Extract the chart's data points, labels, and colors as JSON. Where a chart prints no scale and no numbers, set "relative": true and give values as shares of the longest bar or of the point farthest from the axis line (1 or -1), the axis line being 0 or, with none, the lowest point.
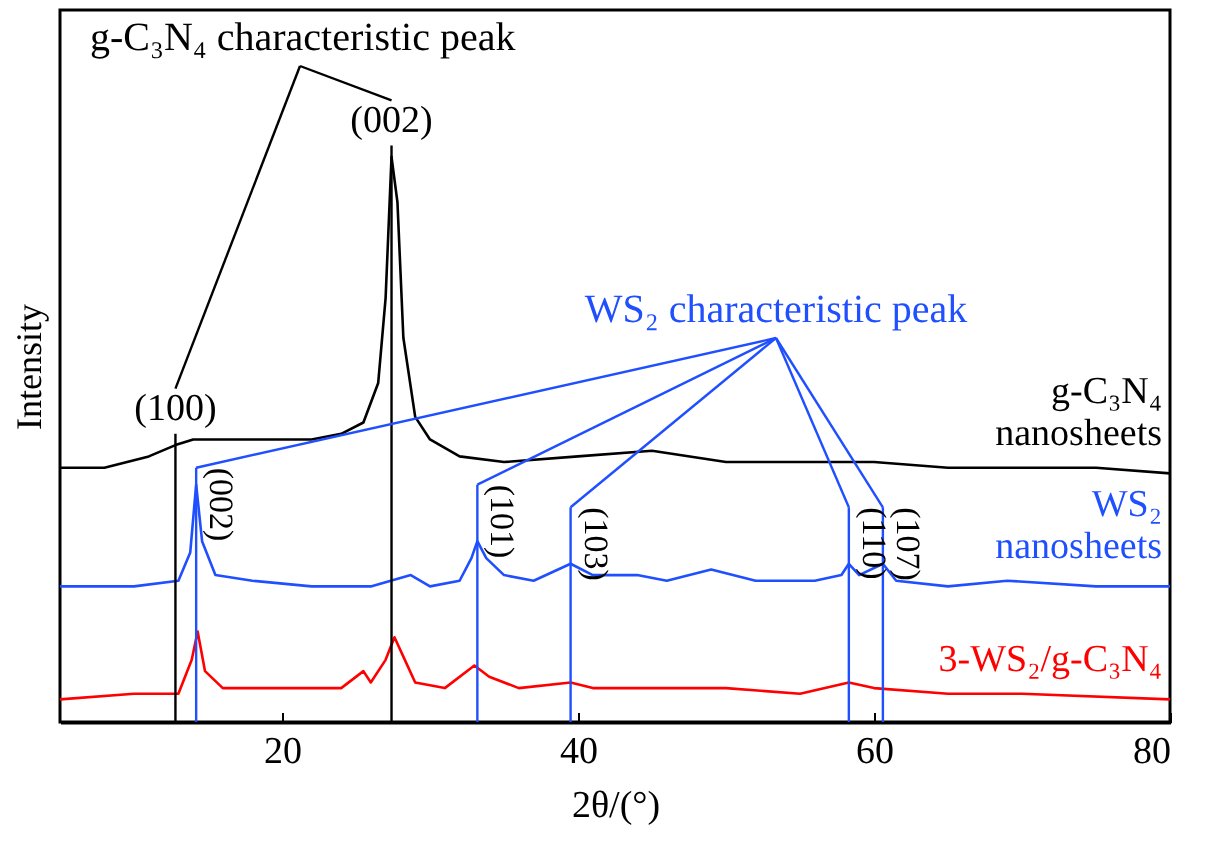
{
  "chart_data": {
    "type": "line",
    "relative": true,
    "xlabel": "2θ/(°)",
    "ylabel": "Intensity",
    "xlim": [
      5,
      80
    ],
    "xticks": [
      20,
      40,
      60,
      80
    ],
    "series": [
      {
        "name": "g-C₃N₄ nanosheets",
        "color": "#000000",
        "x": [
          5,
          8,
          11,
          12.8,
          14,
          18,
          22,
          24,
          25.5,
          26.5,
          27,
          27.4,
          27.8,
          28.2,
          29,
          30,
          32,
          35,
          40,
          45,
          50,
          55,
          60,
          65,
          70,
          75,
          80
        ],
        "values": [
          0.45,
          0.45,
          0.47,
          0.49,
          0.5,
          0.5,
          0.5,
          0.51,
          0.53,
          0.6,
          0.75,
          1,
          0.92,
          0.68,
          0.54,
          0.5,
          0.47,
          0.46,
          0.47,
          0.48,
          0.46,
          0.46,
          0.46,
          0.45,
          0.45,
          0.45,
          0.44
        ]
      },
      {
        "name": "WS₂ nanosheets",
        "color": "#1f4fff",
        "x": [
          5,
          10,
          13,
          13.8,
          14.2,
          14.6,
          15.5,
          18,
          22,
          26,
          28.7,
          30,
          32,
          32.8,
          33.2,
          33.8,
          35,
          37,
          39.5,
          41,
          44,
          46,
          49,
          52,
          56,
          57.8,
          58.3,
          59,
          60.6,
          61.5,
          65,
          69,
          75,
          80
        ],
        "values": [
          0.24,
          0.24,
          0.25,
          0.3,
          0.42,
          0.32,
          0.26,
          0.25,
          0.24,
          0.24,
          0.26,
          0.24,
          0.25,
          0.29,
          0.32,
          0.29,
          0.26,
          0.25,
          0.28,
          0.26,
          0.26,
          0.25,
          0.27,
          0.25,
          0.25,
          0.26,
          0.28,
          0.26,
          0.28,
          0.25,
          0.24,
          0.25,
          0.24,
          0.24
        ]
      },
      {
        "name": "3-WS₂/g-C₃N₄",
        "color": "#ff0000",
        "x": [
          5,
          10,
          13,
          13.9,
          14.3,
          14.8,
          16,
          20,
          24,
          25.5,
          26,
          27,
          27.6,
          28.3,
          29,
          31,
          33,
          34,
          36,
          39.5,
          41,
          44,
          50,
          55,
          58.3,
          60,
          65,
          70,
          80
        ],
        "values": [
          0.04,
          0.05,
          0.05,
          0.11,
          0.16,
          0.09,
          0.06,
          0.06,
          0.06,
          0.09,
          0.07,
          0.11,
          0.15,
          0.11,
          0.07,
          0.06,
          0.1,
          0.08,
          0.06,
          0.07,
          0.06,
          0.06,
          0.06,
          0.05,
          0.07,
          0.06,
          0.05,
          0.05,
          0.04
        ]
      }
    ],
    "ref_lines": [
      {
        "axis": "x",
        "value": 12.8,
        "color": "#000000"
      },
      {
        "axis": "x",
        "value": 27.4,
        "color": "#000000"
      },
      {
        "axis": "x",
        "value": 14.2,
        "color": "#1f4fff"
      },
      {
        "axis": "x",
        "value": 33.2,
        "color": "#1f4fff"
      },
      {
        "axis": "x",
        "value": 39.5,
        "color": "#1f4fff"
      },
      {
        "axis": "x",
        "value": 58.3,
        "color": "#1f4fff"
      },
      {
        "axis": "x",
        "value": 60.6,
        "color": "#1f4fff"
      }
    ],
    "annotations": [
      "g-C₃N₄ characteristic peak",
      "WS₂ characteristic peak",
      {
        "text": "(100)",
        "x": 12.8,
        "y": 0.49
      },
      {
        "text": "(002)",
        "x": 27.4,
        "y": 1
      },
      {
        "text": "(002)",
        "x": 14.2,
        "y": 0.42
      },
      {
        "text": "(101)",
        "x": 33.2,
        "y": 0.32
      },
      {
        "text": "(103)",
        "x": 39.5,
        "y": 0.28
      },
      {
        "text": "(110)",
        "x": 58.3,
        "y": 0.28
      },
      {
        "text": "(107)",
        "x": 60.6,
        "y": 0.28
      }
    ]
  }
}
